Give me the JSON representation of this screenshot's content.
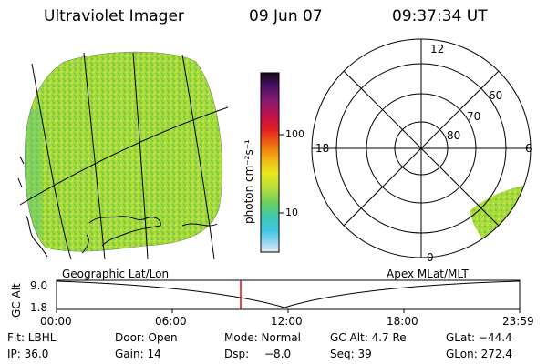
{
  "header": {
    "instrument": "Ultraviolet Imager",
    "date": "09 Jun 07",
    "time": "09:37:34 UT"
  },
  "colorbar": {
    "unit_label": "photon cm⁻²s⁻¹",
    "ticks": [
      "100",
      "10"
    ]
  },
  "polar": {
    "mlt_labels": {
      "top": "12",
      "left": "18",
      "right": "6",
      "bottom": "0"
    },
    "lat_labels": [
      "60",
      "70",
      "80"
    ]
  },
  "timeline": {
    "left_title": "Geographic Lat/Lon",
    "right_title": "Apex MLat/MLT",
    "axis_label": "GC Alt",
    "y_ticks": [
      "9.0",
      "1.8"
    ],
    "x_ticks": [
      "00:00",
      "06:00",
      "12:00",
      "18:00",
      "23:59"
    ],
    "current_time_marker": "09:37:34"
  },
  "status": {
    "filter": "Flt: LBHL",
    "door": "Door: Open",
    "mode": "Mode: Normal",
    "gc_alt": "GC Alt: 4.7 Re",
    "glat": "GLat: −44.4",
    "ip": "IP: 36.0",
    "gain": "Gain: 14",
    "dsp_label": "Dsp:",
    "dsp_value": "−8.0",
    "seq": "Seq: 39",
    "glon": "GLon: 272.4"
  },
  "colors": {
    "background": "#ffffff",
    "image_fill": "#9bd83c",
    "marker": "#e01010"
  }
}
